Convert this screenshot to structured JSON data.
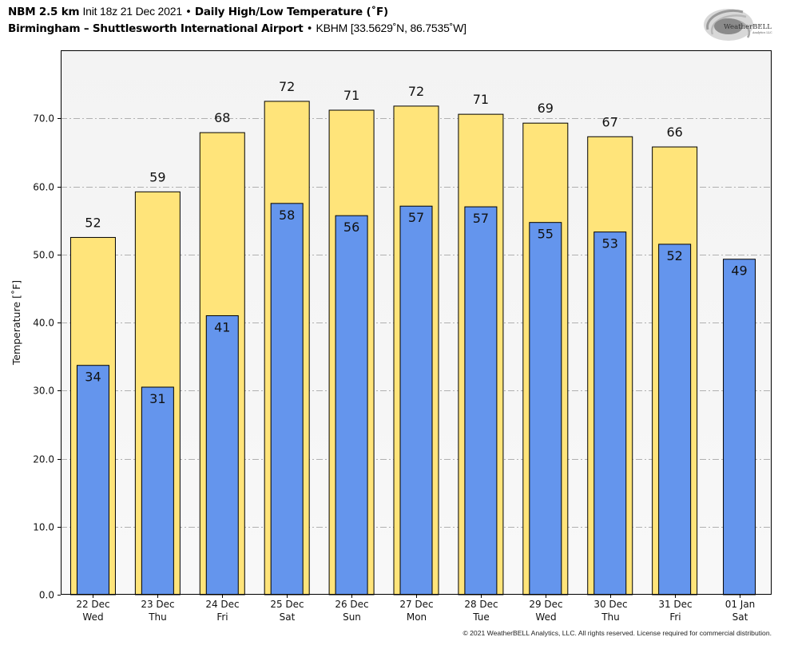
{
  "header": {
    "model": "NBM 2.5 km",
    "init": "Init 18z 21 Dec 2021",
    "separator": "•",
    "product": "Daily High/Low Temperature (˚F)",
    "location": "Birmingham – Shuttlesworth International Airport",
    "station": "KBHM [33.5629˚N, 86.7535˚W]"
  },
  "logo": {
    "text_main": "WeatherBELL",
    "text_sub": "Analytics LLC"
  },
  "footer": "© 2021 WeatherBELL Analytics, LLC. All rights reserved. License required for commercial distribution.",
  "colors": {
    "high": "#ffe47a",
    "low": "#6495ed",
    "edge": "#000000",
    "plot_bg": "#f4f4f4",
    "grid": "#b0b0b0"
  },
  "chart_data": {
    "type": "bar",
    "title": "Daily High/Low Temperature (˚F)",
    "xlabel": "",
    "ylabel": "Temperature [˚F]",
    "ylim": [
      0,
      80
    ],
    "yticks": [
      0,
      10,
      20,
      30,
      40,
      50,
      60,
      70
    ],
    "ytick_labels": [
      "0.0",
      "10.0",
      "20.0",
      "30.0",
      "40.0",
      "50.0",
      "60.0",
      "70.0"
    ],
    "grid": true,
    "categories": [
      {
        "date": "22 Dec",
        "day": "Wed"
      },
      {
        "date": "23 Dec",
        "day": "Thu"
      },
      {
        "date": "24 Dec",
        "day": "Fri"
      },
      {
        "date": "25 Dec",
        "day": "Sat"
      },
      {
        "date": "26 Dec",
        "day": "Sun"
      },
      {
        "date": "27 Dec",
        "day": "Mon"
      },
      {
        "date": "28 Dec",
        "day": "Tue"
      },
      {
        "date": "29 Dec",
        "day": "Wed"
      },
      {
        "date": "30 Dec",
        "day": "Thu"
      },
      {
        "date": "31 Dec",
        "day": "Fri"
      },
      {
        "date": "01 Jan",
        "day": "Sat"
      }
    ],
    "series": [
      {
        "name": "High",
        "values": [
          52.5,
          59.2,
          67.9,
          72.5,
          71.2,
          71.8,
          70.6,
          69.3,
          67.3,
          65.8,
          null
        ],
        "labels": [
          "52",
          "59",
          "68",
          "72",
          "71",
          "72",
          "71",
          "69",
          "67",
          "66",
          ""
        ]
      },
      {
        "name": "Low",
        "values": [
          33.7,
          30.5,
          41.0,
          57.5,
          55.7,
          57.1,
          57.0,
          54.7,
          53.3,
          51.5,
          49.3
        ],
        "labels": [
          "34",
          "31",
          "41",
          "58",
          "56",
          "57",
          "57",
          "55",
          "53",
          "52",
          "49"
        ]
      }
    ]
  }
}
